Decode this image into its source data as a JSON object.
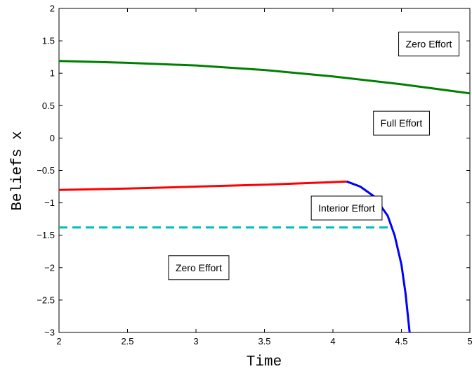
{
  "chart_data": {
    "type": "line",
    "title": "",
    "xlabel": "Time",
    "ylabel": "Beliefs x",
    "xlim": [
      2,
      5
    ],
    "ylim": [
      -3,
      2
    ],
    "xticks": [
      2,
      2.5,
      3,
      3.5,
      4,
      4.5,
      5
    ],
    "xtick_labels": [
      "2",
      "2.5",
      "3",
      "3.5",
      "4",
      "4.5",
      "5"
    ],
    "yticks": [
      -3,
      -2.5,
      -2,
      -1.5,
      -1,
      -0.5,
      0,
      0.5,
      1,
      1.5,
      2
    ],
    "ytick_labels": [
      "−3",
      "−2.5",
      "−2",
      "−1.5",
      "−1",
      "−0.5",
      "0",
      "0.5",
      "1",
      "1.5",
      "2"
    ],
    "grid": false,
    "series": [
      {
        "color": "#007f00",
        "style": "solid",
        "x": [
          2.0,
          2.5,
          3.0,
          3.5,
          4.0,
          4.5,
          5.0
        ],
        "y": [
          1.19,
          1.16,
          1.12,
          1.05,
          0.95,
          0.83,
          0.69
        ]
      },
      {
        "color": "#ff0000",
        "style": "solid",
        "x": [
          2.0,
          2.5,
          3.0,
          3.5,
          4.0,
          4.1
        ],
        "y": [
          -0.8,
          -0.78,
          -0.75,
          -0.72,
          -0.68,
          -0.67
        ]
      },
      {
        "color": "#0000ff",
        "style": "solid",
        "x": [
          4.1,
          4.2,
          4.3,
          4.4,
          4.45,
          4.5,
          4.53,
          4.56
        ],
        "y": [
          -0.67,
          -0.75,
          -0.9,
          -1.2,
          -1.5,
          -1.95,
          -2.4,
          -3.0
        ]
      },
      {
        "color": "#00bfbf",
        "style": "dashed",
        "x": [
          2.0,
          4.4
        ],
        "y": [
          -1.38,
          -1.38
        ]
      }
    ],
    "annotations": [
      {
        "text": "Zero Effort",
        "x": 4.7,
        "y": 1.45
      },
      {
        "text": "Full Effort",
        "x": 4.5,
        "y": 0.23
      },
      {
        "text": "Interior Effort",
        "x": 4.1,
        "y": -1.08
      },
      {
        "text": "Zero Effort",
        "x": 3.02,
        "y": -2.0
      }
    ]
  }
}
